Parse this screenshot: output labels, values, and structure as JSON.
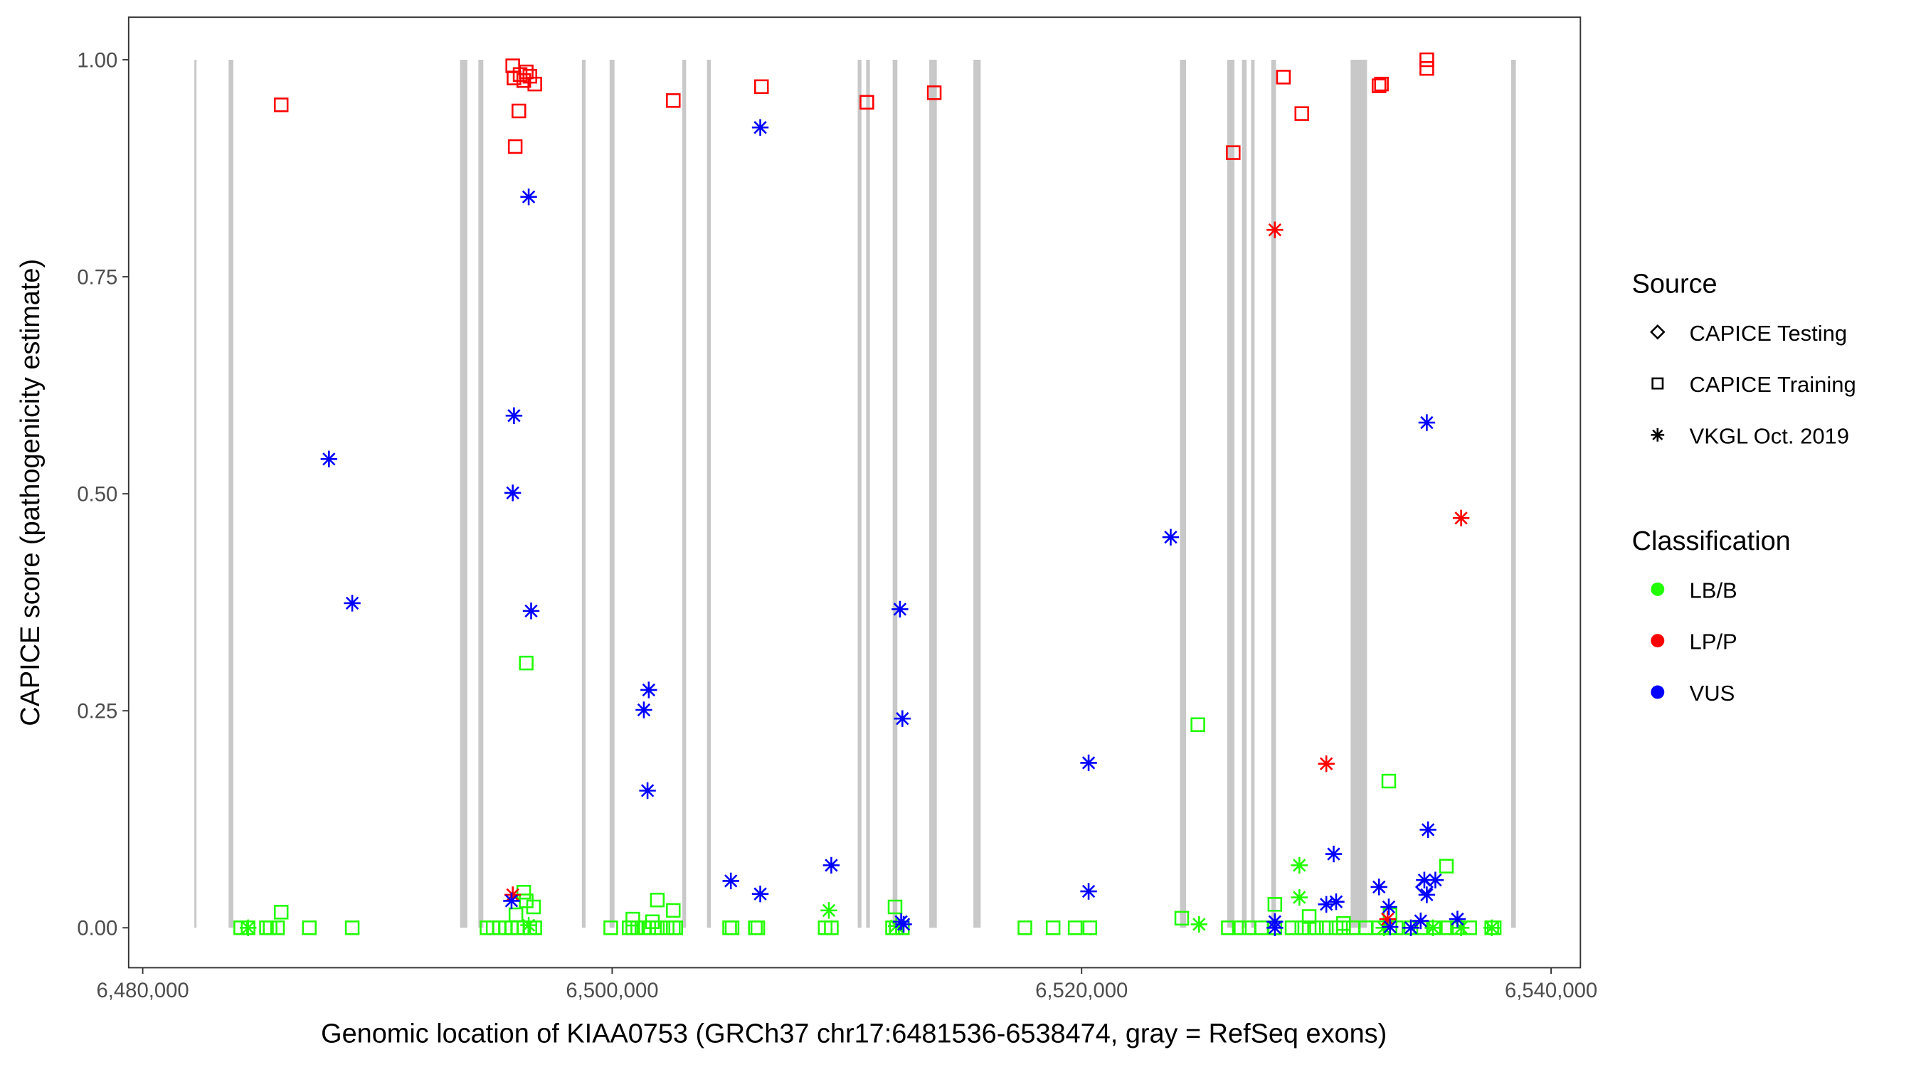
{
  "chart_data": {
    "type": "scatter",
    "xlabel": "Genomic location of KIAA0753 (GRCh37 chr17:6481536-6538474, gray = RefSeq exons)",
    "ylabel": "CAPICE score (pathogenicity estimate)",
    "xlim": [
      6479400,
      6541250
    ],
    "ylim": [
      -0.046,
      1.049
    ],
    "grid": false,
    "x_ticks": [
      {
        "value": 6480000,
        "label": "6,480,000"
      },
      {
        "value": 6500000,
        "label": "6,500,000"
      },
      {
        "value": 6520000,
        "label": "6,520,000"
      },
      {
        "value": 6540000,
        "label": "6,540,000"
      }
    ],
    "y_ticks": [
      {
        "value": 0,
        "label": "0.00"
      },
      {
        "value": 0.25,
        "label": "0.25"
      },
      {
        "value": 0.5,
        "label": "0.50"
      },
      {
        "value": 0.75,
        "label": "0.75"
      },
      {
        "value": 1.0,
        "label": "1.00"
      }
    ],
    "exon_color": "#c8c8c8",
    "exons": [
      [
        6482200,
        6482290
      ],
      [
        6483660,
        6483860
      ],
      [
        6493520,
        6493830
      ],
      [
        6494300,
        6494510
      ],
      [
        6498710,
        6498870
      ],
      [
        6499890,
        6500100
      ],
      [
        6502990,
        6503150
      ],
      [
        6504040,
        6504200
      ],
      [
        6510460,
        6510620
      ],
      [
        6510820,
        6510980
      ],
      [
        6511950,
        6512150
      ],
      [
        6513510,
        6513830
      ],
      [
        6515390,
        6515700
      ],
      [
        6524190,
        6524450
      ],
      [
        6526200,
        6526510
      ],
      [
        6526830,
        6527030
      ],
      [
        6527220,
        6527370
      ],
      [
        6528080,
        6528280
      ],
      [
        6531460,
        6532160
      ],
      [
        6538300,
        6538500
      ]
    ],
    "legend": {
      "position": "right",
      "source": {
        "title": "Source",
        "items": [
          {
            "label": "CAPICE Testing",
            "shape": "diamond"
          },
          {
            "label": "CAPICE Training",
            "shape": "square"
          },
          {
            "label": "VKGL Oct. 2019",
            "shape": "asterisk"
          }
        ]
      },
      "classification": {
        "title": "Classification",
        "items": [
          {
            "label": "LB/B",
            "color": "#21ff00"
          },
          {
            "label": "LP/P",
            "color": "#ff0000"
          },
          {
            "label": "VUS",
            "color": "#0000ff"
          }
        ]
      }
    },
    "series": [
      {
        "source": "CAPICE Training",
        "classification": "LB/B",
        "points": [
          [
            6485899,
            0.018
          ],
          [
            6496339,
            0.305
          ],
          [
            6496234,
            0.041
          ],
          [
            6496339,
            0.031
          ],
          [
            6496652,
            0.024
          ],
          [
            6495900,
            0.015
          ],
          [
            6501924,
            0.032
          ],
          [
            6502603,
            0.02
          ],
          [
            6500880,
            0.01
          ],
          [
            6501715,
            0.007
          ],
          [
            6524952,
            0.234
          ],
          [
            6512051,
            0.024
          ],
          [
            6524266,
            0.011
          ],
          [
            6528233,
            0.027
          ],
          [
            6529694,
            0.013
          ],
          [
            6533087,
            0.169
          ],
          [
            6535541,
            0.071
          ],
          [
            6533140,
            0.015
          ],
          [
            6531156,
            0.005
          ],
          [
            6484176,
            0
          ],
          [
            6484489,
            0
          ],
          [
            6485272,
            0
          ],
          [
            6485429,
            0
          ],
          [
            6485742,
            0
          ],
          [
            6487099,
            0
          ],
          [
            6488926,
            0
          ],
          [
            6494668,
            0
          ],
          [
            6494929,
            0
          ],
          [
            6495190,
            0
          ],
          [
            6495451,
            0
          ],
          [
            6495712,
            0
          ],
          [
            6495973,
            0
          ],
          [
            6496234,
            0
          ],
          [
            6496495,
            0
          ],
          [
            6496704,
            0
          ],
          [
            6499940,
            0
          ],
          [
            6500723,
            0
          ],
          [
            6500880,
            0
          ],
          [
            6501089,
            0
          ],
          [
            6501350,
            0
          ],
          [
            6501559,
            0
          ],
          [
            6501924,
            0
          ],
          [
            6502342,
            0
          ],
          [
            6502603,
            0
          ],
          [
            6502707,
            0
          ],
          [
            6505004,
            0
          ],
          [
            6505108,
            0
          ],
          [
            6506100,
            0
          ],
          [
            6506204,
            0
          ],
          [
            6509075,
            0
          ],
          [
            6509336,
            0
          ],
          [
            6511946,
            0
          ],
          [
            6512103,
            0
          ],
          [
            6512364,
            0
          ],
          [
            6517584,
            0
          ],
          [
            6518785,
            0
          ],
          [
            6519724,
            0
          ],
          [
            6520351,
            0
          ],
          [
            6526249,
            0
          ],
          [
            6526719,
            0
          ],
          [
            6527137,
            0
          ],
          [
            6527659,
            0
          ],
          [
            6528233,
            0
          ],
          [
            6528964,
            0
          ],
          [
            6529381,
            0
          ],
          [
            6529694,
            0
          ],
          [
            6530008,
            0
          ],
          [
            6530425,
            0
          ],
          [
            6530843,
            0
          ],
          [
            6531156,
            0
          ],
          [
            6531574,
            0
          ],
          [
            6532096,
            0
          ],
          [
            6532670,
            0
          ],
          [
            6533140,
            0
          ],
          [
            6533401,
            0
          ],
          [
            6534027,
            0
          ],
          [
            6534445,
            0
          ],
          [
            6535071,
            0
          ],
          [
            6535541,
            0
          ],
          [
            6536011,
            0
          ],
          [
            6536533,
            0
          ],
          [
            6537472,
            0
          ],
          [
            6537577,
            0
          ]
        ]
      },
      {
        "source": "CAPICE Training",
        "classification": "LP/P",
        "points": [
          [
            6485899,
            0.948
          ],
          [
            6495764,
            0.993
          ],
          [
            6495817,
            0.979
          ],
          [
            6496078,
            0.983
          ],
          [
            6496339,
            0.986
          ],
          [
            6496495,
            0.981
          ],
          [
            6495869,
            0.9
          ],
          [
            6496025,
            0.941
          ],
          [
            6496704,
            0.972
          ],
          [
            6496234,
            0.976
          ],
          [
            6502603,
            0.953
          ],
          [
            6506361,
            0.969
          ],
          [
            6510850,
            0.951
          ],
          [
            6513721,
            0.962
          ],
          [
            6526458,
            0.893
          ],
          [
            6528598,
            0.98
          ],
          [
            6529381,
            0.938
          ],
          [
            6532670,
            0.97
          ],
          [
            6532774,
            0.972
          ],
          [
            6534706,
            1.0
          ],
          [
            6534706,
            0.99
          ]
        ]
      },
      {
        "source": "CAPICE Testing",
        "classification": "VUS",
        "points": [
          [
            6534601,
            0.047
          ]
        ]
      },
      {
        "source": "VKGL Oct. 2019",
        "classification": "LB/B",
        "points": [
          [
            6529277,
            0.072
          ],
          [
            6529277,
            0.035
          ],
          [
            6509232,
            0.02
          ],
          [
            6525004,
            0.004
          ],
          [
            6484489,
            0
          ],
          [
            6537472,
            0
          ],
          [
            6536167,
            0
          ],
          [
            6534967,
            0
          ],
          [
            6532879,
            0
          ],
          [
            6512103,
            0.002
          ],
          [
            6496443,
            0.003
          ]
        ]
      },
      {
        "source": "VKGL Oct. 2019",
        "classification": "LP/P",
        "points": [
          [
            6495764,
            0.038
          ],
          [
            6528233,
            0.804
          ],
          [
            6530425,
            0.189
          ],
          [
            6536167,
            0.472
          ],
          [
            6533035,
            0.01
          ]
        ]
      },
      {
        "source": "VKGL Oct. 2019",
        "classification": "VUS",
        "points": [
          [
            6487934,
            0.54
          ],
          [
            6488926,
            0.374
          ],
          [
            6495817,
            0.59
          ],
          [
            6495764,
            0.501
          ],
          [
            6496443,
            0.842
          ],
          [
            6496547,
            0.365
          ],
          [
            6495712,
            0.031
          ],
          [
            6506309,
            0.922
          ],
          [
            6501350,
            0.251
          ],
          [
            6501559,
            0.274
          ],
          [
            6501506,
            0.158
          ],
          [
            6505056,
            0.054
          ],
          [
            6506309,
            0.039
          ],
          [
            6509336,
            0.072
          ],
          [
            6512260,
            0.367
          ],
          [
            6512364,
            0.241
          ],
          [
            6512312,
            0.007
          ],
          [
            6512416,
            0.004
          ],
          [
            6520298,
            0.19
          ],
          [
            6520298,
            0.042
          ],
          [
            6523796,
            0.45
          ],
          [
            6534706,
            0.582
          ],
          [
            6534758,
            0.113
          ],
          [
            6530738,
            0.085
          ],
          [
            6530843,
            0.03
          ],
          [
            6530425,
            0.027
          ],
          [
            6532670,
            0.047
          ],
          [
            6533087,
            0.024
          ],
          [
            6533140,
            0.001
          ],
          [
            6528233,
            0.007
          ],
          [
            6528233,
            0
          ],
          [
            6534706,
            0.038
          ],
          [
            6535071,
            0.055
          ],
          [
            6534601,
            0.055
          ],
          [
            6536011,
            0.01
          ],
          [
            6534445,
            0.008
          ],
          [
            6534027,
            0
          ]
        ]
      }
    ]
  }
}
